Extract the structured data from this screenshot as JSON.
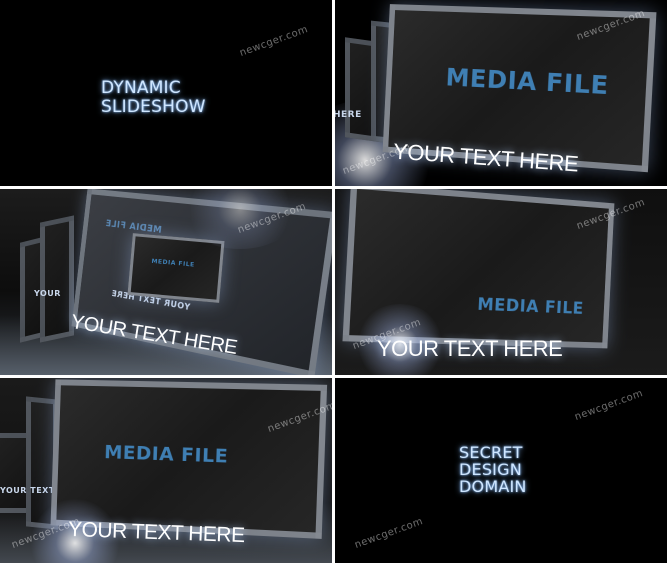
{
  "panels": {
    "intro": {
      "line1": "DYNAMIC",
      "line2": "SLIDESHOW",
      "watermark": "newcger.com"
    },
    "slide_a": {
      "media": "MEDIA FILE",
      "caption": "YOUR TEXT HERE",
      "ghost_label": "HERE",
      "watermark": "newcger.com"
    },
    "slide_b": {
      "media": "MEDIA FILE",
      "caption": "YOUR TEXT HERE",
      "ghost_label": "YOUR",
      "mirror_media": "MEDIA FILE",
      "mirror_caption": "YOUR TEXT HERE",
      "watermark": "newcger.com"
    },
    "slide_c": {
      "media": "MEDIA FILE",
      "caption": "YOUR TEXT HERE",
      "watermark": "newcger.com"
    },
    "slide_d": {
      "media": "MEDIA FILE",
      "caption": "YOUR TEXT HERE",
      "ghost_label": "YOUR TEXT",
      "watermark": "newcger.com"
    },
    "outro": {
      "line1": "SECRET",
      "line2": "DESIGN",
      "line3": "DOMAIN",
      "watermark": "newcger.com"
    }
  }
}
